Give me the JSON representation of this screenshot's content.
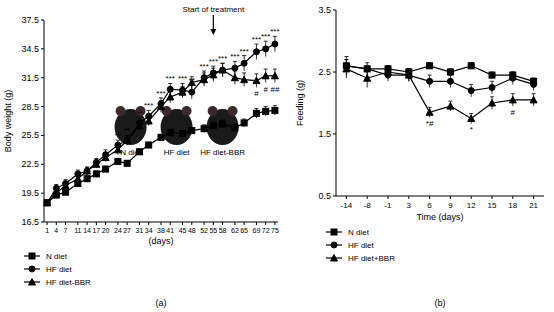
{
  "chart_data": [
    {
      "type": "line",
      "panel_label": "(a)",
      "x_label": "(days)",
      "y_label": "Body weight (g)",
      "xlim": [
        0,
        76
      ],
      "xticks": [
        1,
        4,
        7,
        11,
        14,
        17,
        20,
        24,
        27,
        31,
        34,
        38,
        41,
        45,
        48,
        52,
        55,
        58,
        62,
        65,
        69,
        72,
        75
      ],
      "ylim": [
        16.5,
        37.5
      ],
      "yticks": [
        16.5,
        19.5,
        22.5,
        25.5,
        28.5,
        31.5,
        34.5,
        37.5
      ],
      "x": [
        1,
        4,
        7,
        11,
        14,
        17,
        20,
        24,
        27,
        31,
        34,
        38,
        41,
        45,
        48,
        52,
        55,
        58,
        62,
        65,
        69,
        72,
        75
      ],
      "annotation": {
        "text": "Start of treatment",
        "x": 55
      },
      "image_labels": [
        "N diet",
        "HF diet",
        "HF diet-BBR"
      ],
      "legend": "bottom-left",
      "grid": false,
      "series": [
        {
          "name": "N diet",
          "color": "#000000",
          "marker": "square",
          "values": [
            18.5,
            19.3,
            19.6,
            20.5,
            21.0,
            21.5,
            22.0,
            22.8,
            22.6,
            23.8,
            24.5,
            25.3,
            25.8,
            25.7,
            26.0,
            26.2,
            26.5,
            26.7,
            26.3,
            26.8,
            27.8,
            28.0,
            28.1
          ],
          "errors": [
            0.2,
            0.3,
            0.3,
            0.3,
            0.3,
            0.3,
            0.3,
            0.3,
            0.3,
            0.3,
            0.3,
            0.3,
            0.3,
            0.3,
            0.3,
            0.4,
            0.4,
            0.4,
            0.4,
            0.4,
            0.5,
            0.5,
            0.5
          ],
          "annotations": [
            null,
            null,
            null,
            null,
            null,
            null,
            null,
            null,
            null,
            null,
            null,
            null,
            null,
            null,
            null,
            null,
            null,
            null,
            null,
            null,
            null,
            null,
            null
          ]
        },
        {
          "name": "HF diet",
          "color": "#000000",
          "marker": "circle",
          "values": [
            18.5,
            20.0,
            20.5,
            21.5,
            21.8,
            22.7,
            23.5,
            24.5,
            25.0,
            26.8,
            27.5,
            28.8,
            30.3,
            30.2,
            30.0,
            31.5,
            32.0,
            32.3,
            32.5,
            33.0,
            34.2,
            34.5,
            35.0
          ],
          "errors": [
            0.3,
            0.4,
            0.4,
            0.4,
            0.4,
            0.4,
            0.5,
            0.5,
            0.5,
            0.5,
            0.6,
            0.6,
            0.6,
            0.7,
            0.7,
            0.7,
            0.7,
            0.7,
            0.7,
            0.8,
            0.8,
            0.8,
            0.8
          ],
          "annotations": [
            null,
            null,
            null,
            null,
            null,
            null,
            null,
            "**",
            "**",
            "**",
            "***",
            "***",
            "***",
            "***",
            "**",
            "***",
            "***",
            "***",
            "***",
            "***",
            "***",
            "***",
            "***"
          ]
        },
        {
          "name": "HF diet-BBR",
          "color": "#000000",
          "marker": "triangle",
          "values": [
            18.5,
            19.5,
            20.3,
            21.0,
            21.8,
            22.5,
            23.2,
            24.0,
            25.0,
            26.5,
            27.0,
            28.5,
            29.5,
            30.0,
            31.0,
            31.3,
            31.8,
            32.3,
            31.5,
            31.3,
            31.2,
            31.7,
            31.7
          ],
          "errors": [
            0.3,
            0.3,
            0.3,
            0.4,
            0.4,
            0.4,
            0.4,
            0.5,
            0.5,
            0.5,
            0.5,
            0.6,
            0.6,
            0.6,
            0.6,
            0.7,
            0.7,
            0.7,
            0.7,
            0.7,
            0.7,
            0.7,
            0.7
          ],
          "annotations": [
            null,
            null,
            null,
            null,
            null,
            null,
            null,
            null,
            null,
            null,
            null,
            null,
            null,
            null,
            null,
            null,
            null,
            null,
            null,
            null,
            "#",
            "#",
            "##"
          ]
        }
      ]
    },
    {
      "type": "line",
      "panel_label": "(b)",
      "x_label": "Time (days)",
      "y_label": "Feeding (g)",
      "categories": [
        "-14",
        "-8",
        "-1",
        "3",
        "6",
        "9",
        "12",
        "15",
        "18",
        "21"
      ],
      "ylim": [
        0.5,
        3.5
      ],
      "yticks": [
        0.5,
        1.5,
        2.5,
        3.5
      ],
      "legend": "bottom-left",
      "grid": false,
      "series": [
        {
          "name": "N diet",
          "color": "#000000",
          "marker": "square",
          "values": [
            2.6,
            2.55,
            2.55,
            2.5,
            2.6,
            2.5,
            2.6,
            2.45,
            2.45,
            2.35
          ],
          "errors": [
            0.1,
            0.05,
            0.05,
            0.05,
            0.05,
            0.05,
            0.05,
            0.05,
            0.05,
            0.05
          ],
          "annotations": [
            null,
            null,
            null,
            null,
            null,
            null,
            null,
            null,
            null,
            null
          ]
        },
        {
          "name": "HF diet",
          "color": "#000000",
          "marker": "circle",
          "values": [
            2.6,
            2.55,
            2.45,
            2.45,
            2.35,
            2.35,
            2.2,
            2.25,
            2.4,
            2.3
          ],
          "errors": [
            0.15,
            0.1,
            0.1,
            0.1,
            0.1,
            0.1,
            0.1,
            0.1,
            0.1,
            0.1
          ],
          "annotations": [
            null,
            null,
            null,
            null,
            null,
            null,
            null,
            null,
            null,
            null
          ]
        },
        {
          "name": "HF diet+BBR",
          "color": "#000000",
          "marker": "triangle",
          "values": [
            2.55,
            2.4,
            2.5,
            2.45,
            1.85,
            1.95,
            1.75,
            2.0,
            2.05,
            2.05
          ],
          "errors": [
            0.15,
            0.15,
            0.1,
            0.1,
            0.08,
            0.08,
            0.08,
            0.1,
            0.1,
            0.1
          ],
          "annotations": [
            null,
            null,
            null,
            null,
            "*#",
            null,
            "*",
            null,
            "#",
            null
          ]
        }
      ]
    }
  ]
}
